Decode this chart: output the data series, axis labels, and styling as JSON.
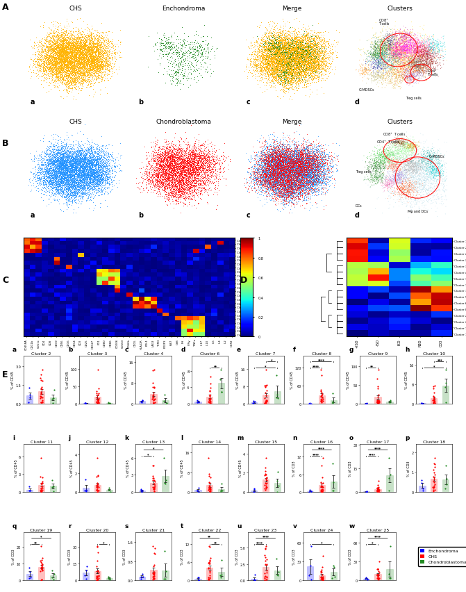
{
  "fig_width": 6.71,
  "fig_height": 8.53,
  "tsne_labels_A": [
    "CHS",
    "Enchondroma",
    "Merge",
    "Clusters"
  ],
  "tsne_sublabels_A": [
    "a",
    "b",
    "c",
    "d"
  ],
  "tsne_labels_B": [
    "CHS",
    "Chondroblastoma",
    "Merge",
    "Clusters"
  ],
  "tsne_sublabels_B": [
    "a",
    "b",
    "c",
    "d"
  ],
  "cluster_panels": [
    "Cluster 2",
    "Cluster 3",
    "Cluster 4",
    "Cluster 6",
    "Cluster 7",
    "Cluster 8",
    "Cluster 9",
    "Cluster 10",
    "Cluster 11",
    "Cluster 12",
    "Cluster 13",
    "Cluster 14",
    "Cluster 15",
    "Cluster 16",
    "Cluster 17",
    "Cluster 18",
    "Cluster 19",
    "Cluster 20",
    "Cluster 21",
    "Cluster 22",
    "Cluster 23",
    "Cluster 24",
    "Cluster 25"
  ],
  "panel_letters": [
    "a",
    "b",
    "c",
    "d",
    "e",
    "f",
    "g",
    "h",
    "i",
    "j",
    "k",
    "l",
    "m",
    "n",
    "o",
    "p",
    "q",
    "r",
    "s",
    "t",
    "u",
    "v",
    "w"
  ],
  "enc_color": "#0000FF",
  "chs_color": "#FF0000",
  "chondro_color": "#228B22",
  "chs_tsne_color": "#FFD700",
  "enc_tsne_color": "#228B22",
  "chondro_tsne_color": "#CC0000",
  "chs_B_color": "#0000CD",
  "legend_labels": [
    "Enchondroma",
    "CHS",
    "Chondroblastoma"
  ],
  "legend_colors": [
    "#0000FF",
    "#FF0000",
    "#228B22"
  ]
}
